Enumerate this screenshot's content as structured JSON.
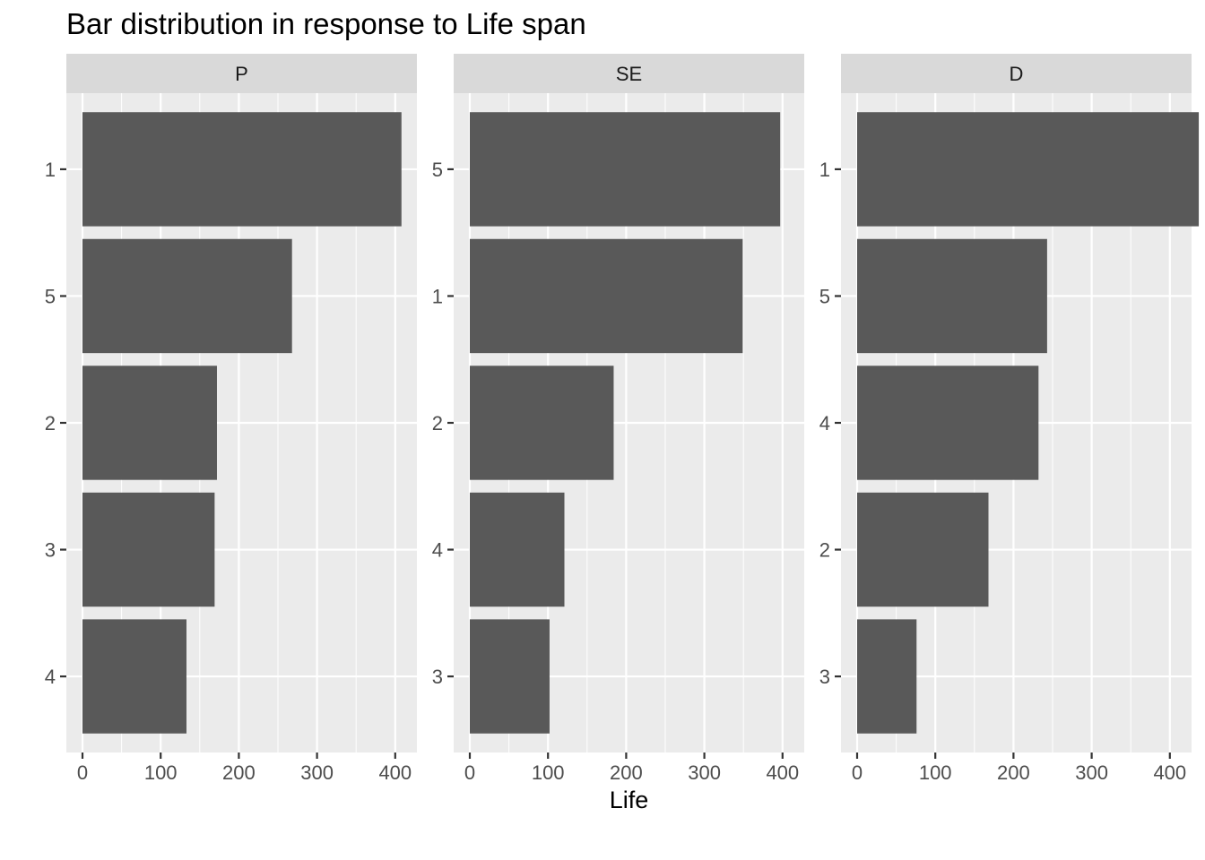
{
  "chart_data": {
    "type": "bar",
    "orientation": "horizontal",
    "title": "Bar distribution in response to Life span",
    "xlabel": "Life",
    "ylabel": "",
    "grid": true,
    "colors": {
      "bar": "#595959",
      "panel_background": "#ebebeb",
      "strip_background": "#d9d9d9",
      "grid": "#ffffff"
    },
    "panels": [
      {
        "name": "P",
        "xlim": [
          0,
          430
        ],
        "xticks": [
          0,
          100,
          200,
          300,
          400
        ],
        "bars": [
          {
            "category": "1",
            "value": 408
          },
          {
            "category": "5",
            "value": 268
          },
          {
            "category": "2",
            "value": 172
          },
          {
            "category": "3",
            "value": 169
          },
          {
            "category": "4",
            "value": 133
          }
        ]
      },
      {
        "name": "SE",
        "xlim": [
          0,
          420
        ],
        "xticks": [
          0,
          100,
          200,
          300,
          400
        ],
        "bars": [
          {
            "category": "5",
            "value": 397
          },
          {
            "category": "1",
            "value": 349
          },
          {
            "category": "2",
            "value": 184
          },
          {
            "category": "4",
            "value": 121
          },
          {
            "category": "3",
            "value": 102
          }
        ]
      },
      {
        "name": "D",
        "xlim": [
          0,
          458
        ],
        "xticks": [
          0,
          100,
          200,
          300,
          400
        ],
        "bars": [
          {
            "category": "1",
            "value": 437
          },
          {
            "category": "5",
            "value": 243
          },
          {
            "category": "4",
            "value": 232
          },
          {
            "category": "2",
            "value": 168
          },
          {
            "category": "3",
            "value": 76
          }
        ]
      }
    ]
  }
}
